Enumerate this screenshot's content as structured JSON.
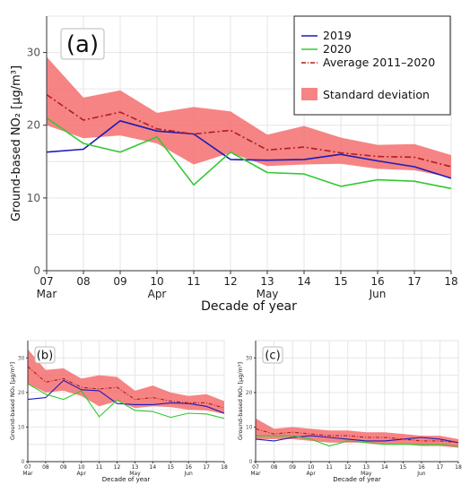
{
  "figure": {
    "type": "line",
    "panels": [
      "a",
      "b",
      "c"
    ]
  },
  "chart_data": [
    {
      "panel_label": "(a)",
      "type": "line",
      "xlabel": "Decade of year",
      "ylabel": "Ground-based NO₂ [μg/m³]",
      "ylim": [
        0,
        35
      ],
      "yticks": [
        0,
        10,
        20,
        30
      ],
      "x": [
        7,
        8,
        9,
        10,
        11,
        12,
        13,
        14,
        15,
        16,
        17,
        18
      ],
      "xtick_labels": [
        "07",
        "08",
        "09",
        "10",
        "11",
        "12",
        "13",
        "14",
        "15",
        "16",
        "17",
        "18"
      ],
      "month_labels": [
        {
          "x": 7,
          "label": "Mar"
        },
        {
          "x": 10,
          "label": "Apr"
        },
        {
          "x": 13,
          "label": "May"
        },
        {
          "x": 16,
          "label": "Jun"
        }
      ],
      "grid": true,
      "legend_position": "top-right",
      "series": [
        {
          "name": "2019",
          "color": "#1c1cb8",
          "style": "solid",
          "values": [
            16.3,
            16.7,
            20.6,
            19.2,
            18.8,
            15.3,
            15.2,
            15.3,
            16.0,
            15.1,
            14.3,
            12.7
          ]
        },
        {
          "name": "2020",
          "color": "#32c832",
          "style": "solid",
          "values": [
            21.0,
            17.5,
            16.3,
            18.4,
            11.8,
            16.3,
            13.5,
            13.3,
            11.6,
            12.5,
            12.3,
            11.3
          ]
        },
        {
          "name": "Average 2011–2020",
          "color": "#b01e1e",
          "style": "dashdot",
          "values": [
            24.2,
            20.7,
            21.8,
            19.5,
            18.8,
            19.3,
            16.6,
            17.0,
            16.2,
            15.7,
            15.6,
            14.3
          ]
        }
      ],
      "band": {
        "name": "Standard deviation",
        "color": "#f56e6e",
        "lower": [
          20.0,
          18.2,
          18.6,
          17.5,
          14.6,
          16.2,
          14.4,
          14.6,
          14.7,
          14.0,
          13.8,
          12.8
        ],
        "upper": [
          29.4,
          23.8,
          24.8,
          21.7,
          22.5,
          21.9,
          18.7,
          19.9,
          18.3,
          17.3,
          17.4,
          15.9
        ]
      }
    },
    {
      "panel_label": "(b)",
      "type": "line",
      "xlabel": "Decade of year",
      "ylabel": "Ground-based NO₂ [μg/m³]",
      "ylim": [
        0,
        35
      ],
      "yticks": [
        0,
        10,
        20,
        30
      ],
      "x": [
        7,
        8,
        9,
        10,
        11,
        12,
        13,
        14,
        15,
        16,
        17,
        18
      ],
      "xtick_labels": [
        "07",
        "08",
        "09",
        "10",
        "11",
        "12",
        "13",
        "14",
        "15",
        "16",
        "17",
        "18"
      ],
      "month_labels": [
        {
          "x": 7,
          "label": "Mar"
        },
        {
          "x": 10,
          "label": "Apr"
        },
        {
          "x": 13,
          "label": "May"
        },
        {
          "x": 16,
          "label": "Jun"
        }
      ],
      "grid": true,
      "series": [
        {
          "name": "2019",
          "color": "#1c1cb8",
          "style": "solid",
          "values": [
            18.0,
            18.5,
            23.5,
            20.8,
            20.5,
            16.8,
            16.5,
            16.5,
            17.0,
            16.8,
            16.0,
            14.0
          ]
        },
        {
          "name": "2020",
          "color": "#32c832",
          "style": "solid",
          "values": [
            22.5,
            19.5,
            18.0,
            20.5,
            13.0,
            17.8,
            14.8,
            14.5,
            12.8,
            14.0,
            13.8,
            12.5
          ]
        },
        {
          "name": "Average 2011–2020",
          "color": "#b01e1e",
          "style": "dashdot",
          "values": [
            27.5,
            23.0,
            24.0,
            21.5,
            21.0,
            21.5,
            18.0,
            18.5,
            17.5,
            17.0,
            17.0,
            15.5
          ]
        }
      ],
      "band": {
        "name": "Standard deviation",
        "color": "#f56e6e",
        "lower": [
          22.5,
          20.0,
          20.5,
          19.0,
          16.0,
          17.5,
          15.5,
          16.0,
          15.8,
          15.0,
          14.8,
          13.8
        ],
        "upper": [
          32.5,
          26.5,
          27.0,
          24.0,
          25.0,
          24.5,
          20.5,
          22.0,
          20.0,
          19.0,
          19.5,
          17.5
        ]
      }
    },
    {
      "panel_label": "(c)",
      "type": "line",
      "xlabel": "Decade of year",
      "ylabel": "Ground-based NO₂ [μg/m³]",
      "ylim": [
        0,
        35
      ],
      "yticks": [
        0,
        10,
        20,
        30
      ],
      "x": [
        7,
        8,
        9,
        10,
        11,
        12,
        13,
        14,
        15,
        16,
        17,
        18
      ],
      "xtick_labels": [
        "07",
        "08",
        "09",
        "10",
        "11",
        "12",
        "13",
        "14",
        "15",
        "16",
        "17",
        "18"
      ],
      "month_labels": [
        {
          "x": 7,
          "label": "Mar"
        },
        {
          "x": 10,
          "label": "Apr"
        },
        {
          "x": 13,
          "label": "May"
        },
        {
          "x": 16,
          "label": "Jun"
        }
      ],
      "grid": true,
      "series": [
        {
          "name": "2019",
          "color": "#1c1cb8",
          "style": "solid",
          "values": [
            6.5,
            6.0,
            7.0,
            7.5,
            7.0,
            6.5,
            6.0,
            6.0,
            6.5,
            7.0,
            6.5,
            5.5
          ]
        },
        {
          "name": "2020",
          "color": "#32c832",
          "style": "solid",
          "values": [
            7.5,
            7.5,
            7.5,
            6.5,
            4.5,
            6.0,
            5.5,
            5.0,
            5.0,
            5.0,
            5.0,
            4.5
          ]
        },
        {
          "name": "Average 2011–2020",
          "color": "#b01e1e",
          "style": "dashdot",
          "values": [
            9.5,
            8.0,
            8.5,
            8.0,
            7.5,
            7.5,
            7.0,
            7.0,
            6.5,
            6.0,
            6.0,
            5.5
          ]
        }
      ],
      "band": {
        "name": "Standard deviation",
        "color": "#f56e6e",
        "lower": [
          6.5,
          6.5,
          6.5,
          6.0,
          5.5,
          5.5,
          5.5,
          5.0,
          5.0,
          4.5,
          4.5,
          4.0
        ],
        "upper": [
          12.5,
          9.5,
          10.0,
          9.5,
          9.0,
          9.0,
          8.5,
          8.5,
          8.0,
          7.5,
          7.5,
          6.5
        ]
      }
    }
  ]
}
